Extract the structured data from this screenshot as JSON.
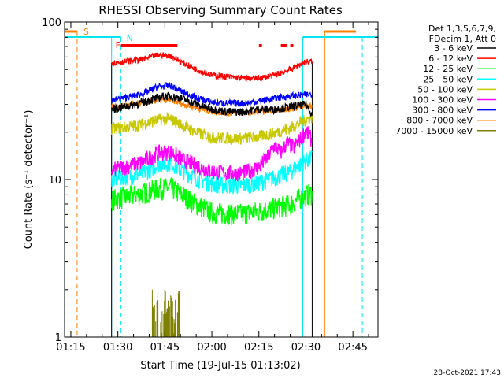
{
  "chart_data": {
    "type": "line",
    "title": "RHESSI Observing Summary Count Rates",
    "xlabel": "Start Time (19-Jul-15 01:13:02)",
    "ylabel": "Count Rate (s⁻¹ detector⁻¹)",
    "x_ticks": [
      "01:15",
      "01:30",
      "01:45",
      "02:00",
      "02:15",
      "02:30",
      "02:45"
    ],
    "y_ticks": [
      "1",
      "10",
      "100"
    ],
    "xlim": [
      "01:13",
      "02:53"
    ],
    "ylim": [
      1,
      100
    ],
    "y_scale": "log",
    "grid": false,
    "legend_header": [
      "Det 1,3,5,6,7,9,",
      "FDecim 1, Att 0"
    ],
    "legend_position": "top-right",
    "footer_timestamp": "28-Oct-2021 17:43",
    "markers": {
      "S": {
        "label": "S",
        "color": "#ff8000"
      },
      "N": {
        "label": "N",
        "color": "#00e5ee"
      },
      "F": {
        "label": "F",
        "color": "#ff0000"
      }
    },
    "series": [
      {
        "name": "3 - 6 keV",
        "color": "#000000",
        "x": [
          "01:28",
          "01:32",
          "01:38",
          "01:45",
          "01:50",
          "01:55",
          "02:00",
          "02:05",
          "02:10",
          "02:15",
          "02:20",
          "02:25",
          "02:30",
          "02:32"
        ],
        "y": [
          28,
          29,
          31,
          34,
          33,
          30,
          28,
          27,
          27,
          28,
          28,
          29,
          30,
          26
        ]
      },
      {
        "name": "6 - 12 keV",
        "color": "#ff0000",
        "x": [
          "01:28",
          "01:32",
          "01:38",
          "01:43",
          "01:47",
          "01:50",
          "01:55",
          "02:00",
          "02:05",
          "02:10",
          "02:15",
          "02:20",
          "02:25",
          "02:30",
          "02:32"
        ],
        "y": [
          55,
          56,
          58,
          62,
          61,
          56,
          50,
          46,
          45,
          44,
          44,
          46,
          50,
          56,
          56
        ]
      },
      {
        "name": "12 - 25 keV",
        "color": "#00ff00",
        "x": [
          "01:28",
          "01:32",
          "01:38",
          "01:43",
          "01:47",
          "01:50",
          "01:55",
          "02:00",
          "02:05",
          "02:10",
          "02:15",
          "02:20",
          "02:25",
          "02:30",
          "02:32"
        ],
        "y": [
          7.5,
          7.7,
          8.2,
          8.8,
          8.9,
          8.1,
          7,
          6.2,
          6.1,
          6.1,
          6.3,
          6.6,
          7.0,
          8.0,
          8.2
        ]
      },
      {
        "name": "25 - 50 keV",
        "color": "#00ffff",
        "x": [
          "01:28",
          "01:32",
          "01:38",
          "01:43",
          "01:47",
          "01:50",
          "01:55",
          "02:00",
          "02:05",
          "02:10",
          "02:15",
          "02:20",
          "02:25",
          "02:30",
          "02:32"
        ],
        "y": [
          10,
          10.3,
          11,
          12.5,
          12.8,
          11.6,
          10.3,
          9.4,
          9.2,
          9.2,
          9.6,
          10.3,
          11.2,
          13.2,
          13.8
        ]
      },
      {
        "name": "50 - 100 keV",
        "color": "#c8c800",
        "x": [
          "01:28",
          "01:32",
          "01:38",
          "01:43",
          "01:47",
          "01:50",
          "01:55",
          "02:00",
          "02:05",
          "02:10",
          "02:15",
          "02:20",
          "02:25",
          "02:30",
          "02:32"
        ],
        "y": [
          21,
          21.5,
          22.5,
          24,
          24.2,
          22.5,
          20,
          18.6,
          18.3,
          18.3,
          18.8,
          19.8,
          21.3,
          24,
          25
        ]
      },
      {
        "name": "100 - 300 keV",
        "color": "#ff00ff",
        "x": [
          "01:28",
          "01:32",
          "01:38",
          "01:43",
          "01:47",
          "01:50",
          "01:55",
          "02:00",
          "02:05",
          "02:10",
          "02:15",
          "02:18",
          "02:20",
          "02:22",
          "02:24",
          "02:26",
          "02:28",
          "02:30",
          "02:32"
        ],
        "y": [
          11.5,
          12,
          13,
          14.8,
          15,
          13.6,
          12.3,
          11.3,
          11,
          11,
          12,
          14,
          16.5,
          14.8,
          17.2,
          16,
          17.8,
          20.5,
          17.5
        ]
      },
      {
        "name": "300 - 800 keV",
        "color": "#0000ff",
        "x": [
          "01:28",
          "01:32",
          "01:38",
          "01:43",
          "01:47",
          "01:50",
          "01:55",
          "02:00",
          "02:05",
          "02:10",
          "02:15",
          "02:20",
          "02:25",
          "02:30",
          "02:32"
        ],
        "y": [
          32,
          33,
          35,
          39,
          39.5,
          36.5,
          33,
          31,
          30.5,
          30.5,
          31.5,
          32.8,
          34,
          34.5,
          35
        ]
      },
      {
        "name": "800 - 7000 keV",
        "color": "#ff8000",
        "x": [
          "01:28",
          "01:32",
          "01:38",
          "01:43",
          "01:47",
          "01:50",
          "01:55",
          "02:00",
          "02:05",
          "02:10",
          "02:15",
          "02:20",
          "02:25",
          "02:30",
          "02:32"
        ],
        "y": [
          29,
          29.5,
          30.5,
          32,
          32,
          30.5,
          28.5,
          27,
          26.5,
          26.5,
          27,
          27.6,
          28.3,
          29,
          29.5
        ]
      },
      {
        "name": "7000 - 15000 keV",
        "color": "#808000",
        "x": [
          "01:41",
          "01:42",
          "01:43",
          "01:44",
          "01:45",
          "01:46",
          "01:47",
          "01:48",
          "01:49",
          "01:50"
        ],
        "y": [
          1.9,
          1.3,
          1.8,
          1.1,
          1.9,
          1.4,
          1.7,
          1.2,
          1.9,
          1.5
        ]
      }
    ]
  }
}
